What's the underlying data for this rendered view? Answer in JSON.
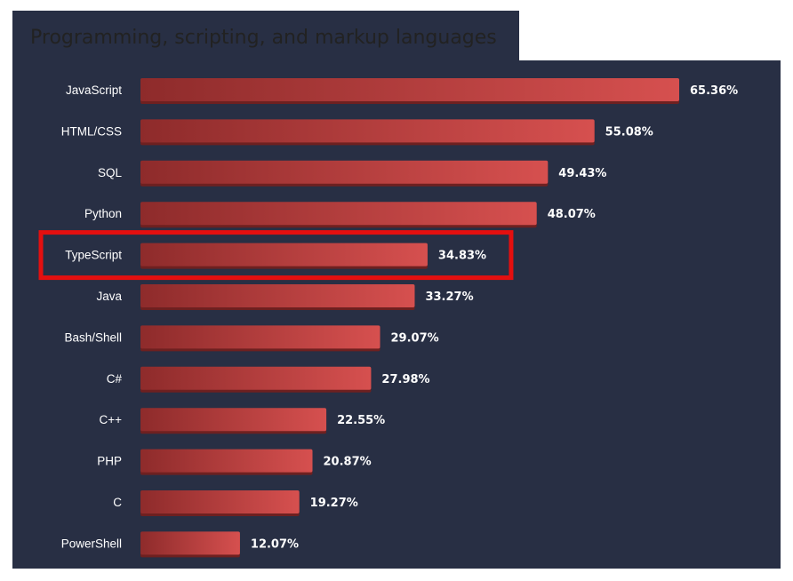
{
  "title": "Programming, scripting, and markup languages",
  "highlight": "TypeScript",
  "colors": {
    "background": "#282f44",
    "bar_start": "#8e2b2b",
    "bar_end": "#d6504f",
    "bar_shadow": "#6e2020",
    "highlight_box": "#e40f0f",
    "text": "#ffffff"
  },
  "chart_data": {
    "type": "bar",
    "orientation": "horizontal",
    "title": "Programming, scripting, and markup languages",
    "categories": [
      "JavaScript",
      "HTML/CSS",
      "SQL",
      "Python",
      "TypeScript",
      "Java",
      "Bash/Shell",
      "C#",
      "C++",
      "PHP",
      "C",
      "PowerShell"
    ],
    "values": [
      65.36,
      55.08,
      49.43,
      48.07,
      34.83,
      33.27,
      29.07,
      27.98,
      22.55,
      20.87,
      19.27,
      12.07
    ],
    "value_labels": [
      "65.36%",
      "55.08%",
      "49.43%",
      "48.07%",
      "34.83%",
      "33.27%",
      "29.07%",
      "27.98%",
      "22.55%",
      "20.87%",
      "19.27%",
      "12.07%"
    ],
    "xlim": [
      0,
      65.36
    ],
    "grid": false,
    "legend": "none"
  }
}
